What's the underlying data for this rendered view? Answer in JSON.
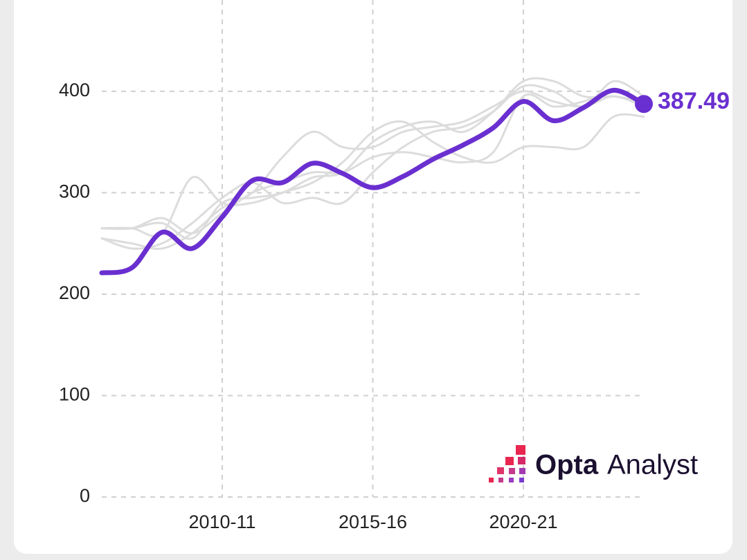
{
  "chart_data": {
    "type": "line",
    "categories": [
      null,
      null,
      null,
      null,
      "2010-11",
      null,
      null,
      null,
      null,
      "2015-16",
      null,
      null,
      null,
      null,
      "2020-21",
      null,
      null,
      null,
      null
    ],
    "series": [
      {
        "color": "#6a2fd0",
        "values": [
          221,
          226,
          261,
          245,
          276,
          312,
          310,
          329,
          319,
          305,
          316,
          333,
          347,
          364,
          390,
          371,
          384,
          401,
          387.49
        ]
      },
      {
        "color": "#dcdcdc",
        "values": [
          265,
          265,
          270,
          255,
          290,
          295,
          300,
          315,
          320,
          350,
          365,
          370,
          360,
          380,
          410,
          410,
          395,
          395,
          390
        ]
      },
      {
        "color": "#dcdcdc",
        "values": [
          255,
          250,
          245,
          260,
          285,
          300,
          335,
          360,
          345,
          345,
          360,
          365,
          370,
          385,
          400,
          390,
          385,
          395,
          385
        ]
      },
      {
        "color": "#dcdcdc",
        "values": [
          265,
          265,
          260,
          315,
          290,
          290,
          300,
          310,
          330,
          360,
          370,
          350,
          335,
          330,
          345,
          345,
          345,
          375,
          375
        ]
      },
      {
        "color": "#dcdcdc",
        "values": [
          255,
          245,
          250,
          270,
          295,
          310,
          290,
          295,
          290,
          320,
          345,
          360,
          365,
          380,
          405,
          400,
          385,
          410,
          395
        ]
      },
      {
        "color": "#dcdcdc",
        "values": [
          265,
          265,
          275,
          260,
          280,
          300,
          310,
          320,
          320,
          335,
          340,
          335,
          330,
          340,
          395,
          385,
          390,
          400,
          390
        ]
      }
    ],
    "ylim": [
      0,
      490
    ],
    "yticks": [
      0,
      100,
      200,
      300,
      400
    ],
    "grid": true,
    "brand": {
      "bold": "Opta",
      "light": "Analyst"
    }
  }
}
